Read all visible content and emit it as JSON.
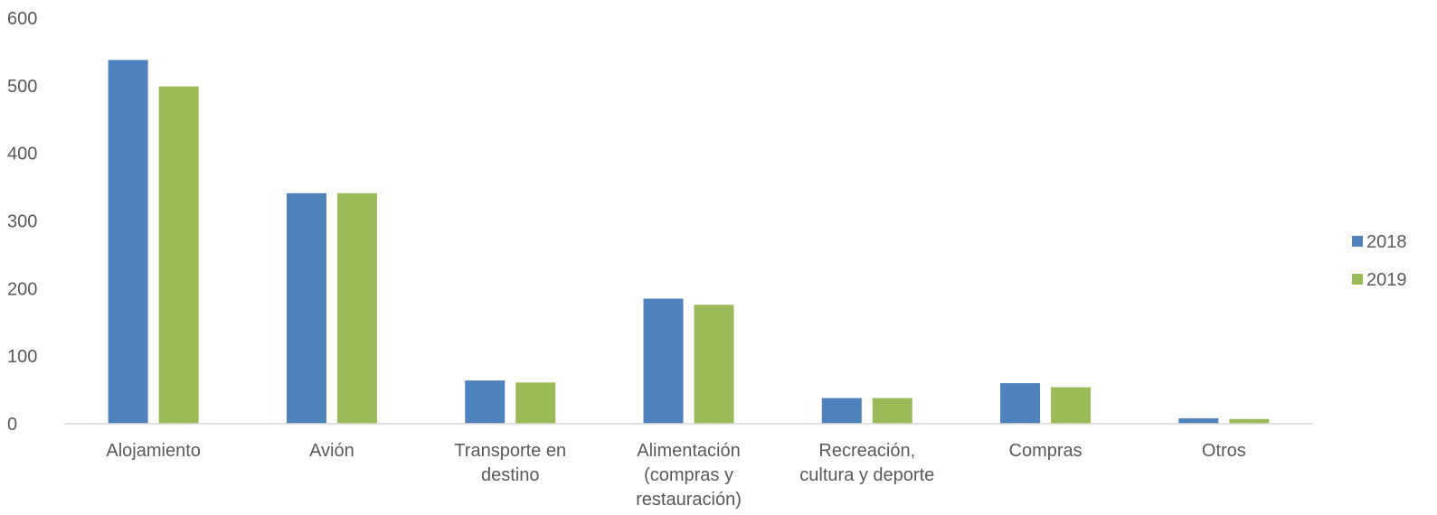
{
  "chart_data": {
    "type": "bar",
    "title": "",
    "xlabel": "",
    "ylabel": "",
    "ylim": [
      0,
      600
    ],
    "yticks": [
      0,
      100,
      200,
      300,
      400,
      500,
      600
    ],
    "grid": false,
    "legend_position": "right",
    "categories": [
      [
        "Alojamiento"
      ],
      [
        "Avión"
      ],
      [
        "Transporte en",
        "destino"
      ],
      [
        "Alimentación",
        "(compras y",
        "restauración)"
      ],
      [
        "Recreación,",
        "cultura y deporte"
      ],
      [
        "Compras"
      ],
      [
        "Otros"
      ]
    ],
    "series": [
      {
        "name": "2018",
        "color": "#4f81bd",
        "values": [
          538,
          341,
          64,
          185,
          38,
          60,
          8
        ]
      },
      {
        "name": "2019",
        "color": "#9bbb59",
        "values": [
          499,
          341,
          61,
          176,
          38,
          54,
          7
        ]
      }
    ]
  }
}
